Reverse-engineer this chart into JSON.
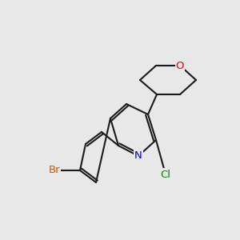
{
  "bg_color": "#e8e8e8",
  "bond_color": "#1a1a1a",
  "bond_width": 1.5,
  "atom_colors": {
    "N": "#0000ee",
    "O": "#ee0000",
    "Br": "#cc5500",
    "Cl": "#008800"
  },
  "font_size": 9.5,
  "figsize": [
    3.0,
    3.0
  ],
  "dpi": 100
}
